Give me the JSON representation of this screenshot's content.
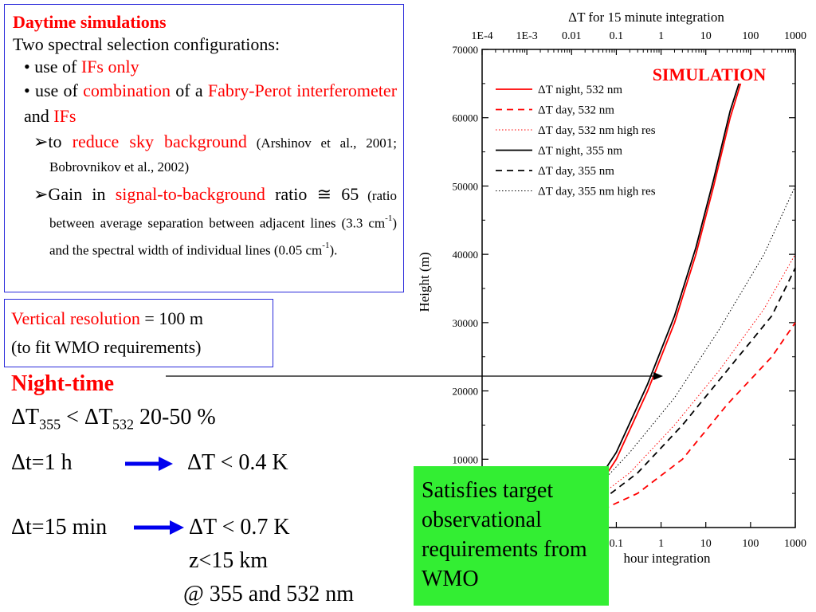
{
  "box_daytime": {
    "title": "Daytime simulations",
    "line1": "Two spectral selection configurations:",
    "b1_pre": "•  use of ",
    "b1_red": "IFs only",
    "b2_pre": "• use of ",
    "b2_red1": "combination",
    "b2_mid": " of a ",
    "b2_red2": "Fabry-Perot interferometer",
    "b2_and": " and ",
    "b2_red3": "IFs",
    "s1_pre": "➢to ",
    "s1_red": "reduce sky background",
    "s1_cite": " (Arshinov et al., 2001; Bobrovnikov et al., 2002)",
    "s2_pre": "➢Gain in ",
    "s2_red": "signal-to-background",
    "s2_mid": " ratio ≅ 65",
    "s2_note_a": " (ratio between average separation between adjacent lines (3.3 cm",
    "s2_note_sup1": "-1",
    "s2_note_b": ") and the spectral width of individual lines (0.05 cm",
    "s2_note_sup2": "-1",
    "s2_note_c": ")."
  },
  "box_vertical": {
    "red": "Vertical resolution",
    "value": " = 100 m",
    "line2": "(to fit WMO requirements)"
  },
  "night": {
    "title": "Night-time",
    "dT": "ΔT",
    "sub355": "355",
    "lt": " < ΔT",
    "sub532": "532",
    "range": " 20-50 %",
    "row1_left": "Δt=1 h",
    "row1_right": "ΔT < 0.4 K",
    "row2_left": "Δt=15 min",
    "row2_right": "ΔT < 0.7 K",
    "row3": "z<15 km",
    "row4": "@ 355 and 532 nm"
  },
  "green_box": {
    "text": "Satisfies target observational requirements from WMO"
  },
  "colors": {
    "red": "#ff0000",
    "box_border": "#2a2adb",
    "arrow_blue": "#0000ee",
    "green": "#33ee33"
  },
  "chart_data": {
    "type": "line",
    "top_title": "ΔT for 15 minute integration",
    "bottom_title": "hour integration",
    "overlay_label": "SIMULATION",
    "ylabel": "Height (m)",
    "xscale": "log",
    "xlim": [
      0.0001,
      1000
    ],
    "ylim": [
      0,
      70000
    ],
    "top_ticks": [
      "1E-4",
      "1E-3",
      "0.01",
      "0.1",
      "1",
      "10",
      "100",
      "1000"
    ],
    "bottom_ticks": [
      "0.1",
      "1",
      "10",
      "100",
      "1000"
    ],
    "y_ticks": [
      "10000",
      "20000",
      "30000",
      "40000",
      "50000",
      "60000",
      "70000"
    ],
    "legend_position": "top-left",
    "series": [
      {
        "name": "ΔT night, 532 nm",
        "color": "#ff0000",
        "dash": "solid",
        "points": [
          [
            0.02,
            3000
          ],
          [
            0.1,
            10000
          ],
          [
            0.5,
            20000
          ],
          [
            2,
            30000
          ],
          [
            6,
            40000
          ],
          [
            15,
            50000
          ],
          [
            35,
            60000
          ],
          [
            60,
            65000
          ]
        ]
      },
      {
        "name": "ΔT day, 532 nm",
        "color": "#ff0000",
        "dash": "dashed",
        "points": [
          [
            0.03,
            2000
          ],
          [
            0.3,
            5000
          ],
          [
            3,
            10000
          ],
          [
            30,
            18000
          ],
          [
            300,
            25000
          ],
          [
            1000,
            30000
          ]
        ]
      },
      {
        "name": "ΔT day, 532 nm high res",
        "color": "#ff0000",
        "dash": "dotted",
        "points": [
          [
            0.02,
            3000
          ],
          [
            0.2,
            8000
          ],
          [
            2,
            15000
          ],
          [
            20,
            23000
          ],
          [
            200,
            32000
          ],
          [
            1000,
            40000
          ]
        ]
      },
      {
        "name": "ΔT night, 355 nm",
        "color": "#000000",
        "dash": "solid",
        "points": [
          [
            0.02,
            4000
          ],
          [
            0.1,
            11000
          ],
          [
            0.5,
            21000
          ],
          [
            2,
            31000
          ],
          [
            6,
            41000
          ],
          [
            15,
            51000
          ],
          [
            35,
            61000
          ],
          [
            55,
            65000
          ]
        ]
      },
      {
        "name": "ΔT day, 355 nm",
        "color": "#000000",
        "dash": "dashed",
        "points": [
          [
            0.03,
            3000
          ],
          [
            0.3,
            8000
          ],
          [
            3,
            15000
          ],
          [
            30,
            23000
          ],
          [
            300,
            31000
          ],
          [
            1000,
            38000
          ]
        ]
      },
      {
        "name": "ΔT day, 355 nm high res",
        "color": "#000000",
        "dash": "dotted",
        "points": [
          [
            0.02,
            4000
          ],
          [
            0.2,
            11000
          ],
          [
            2,
            19000
          ],
          [
            20,
            29000
          ],
          [
            200,
            40000
          ],
          [
            1000,
            50000
          ]
        ]
      }
    ]
  }
}
